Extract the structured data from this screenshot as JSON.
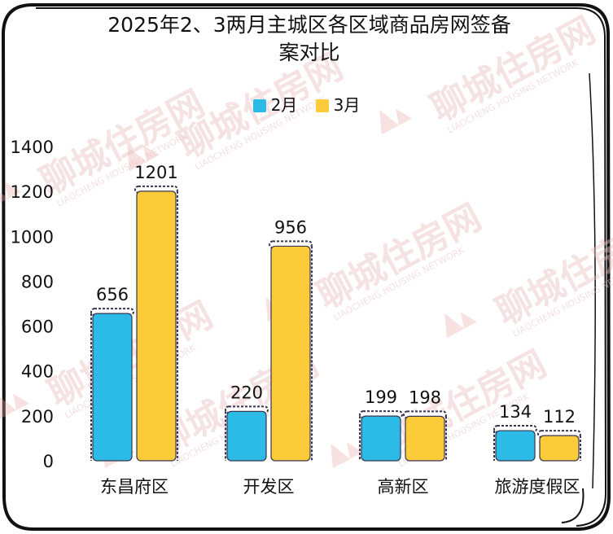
{
  "title": "2025年2、3两月主城区各区域商品房网签备案对比",
  "watermark": {
    "main": "聊城住房网",
    "sub": "LIAOCHENG HOUSING NETWORK"
  },
  "colors": {
    "series_feb": "#2bbbe6",
    "series_mar": "#fccb3a",
    "bar_outline": "#3a3550",
    "watermark": "#e9bfbf"
  },
  "chart_data": {
    "type": "bar",
    "title": "2025年2、3两月主城区各区域商品房网签备案对比",
    "categories": [
      "东昌府区",
      "开发区",
      "高新区",
      "旅游度假区"
    ],
    "series": [
      {
        "name": "2月",
        "values": [
          656,
          220,
          199,
          134
        ]
      },
      {
        "name": "3月",
        "values": [
          1201,
          956,
          198,
          112
        ]
      }
    ],
    "yticks": [
      "1400",
      "1200",
      "1000",
      "800",
      "600",
      "400",
      "200",
      "0"
    ],
    "ylim": [
      0,
      1400
    ],
    "grid": false,
    "legend_position": "top-center",
    "xlabel": "",
    "ylabel": ""
  }
}
